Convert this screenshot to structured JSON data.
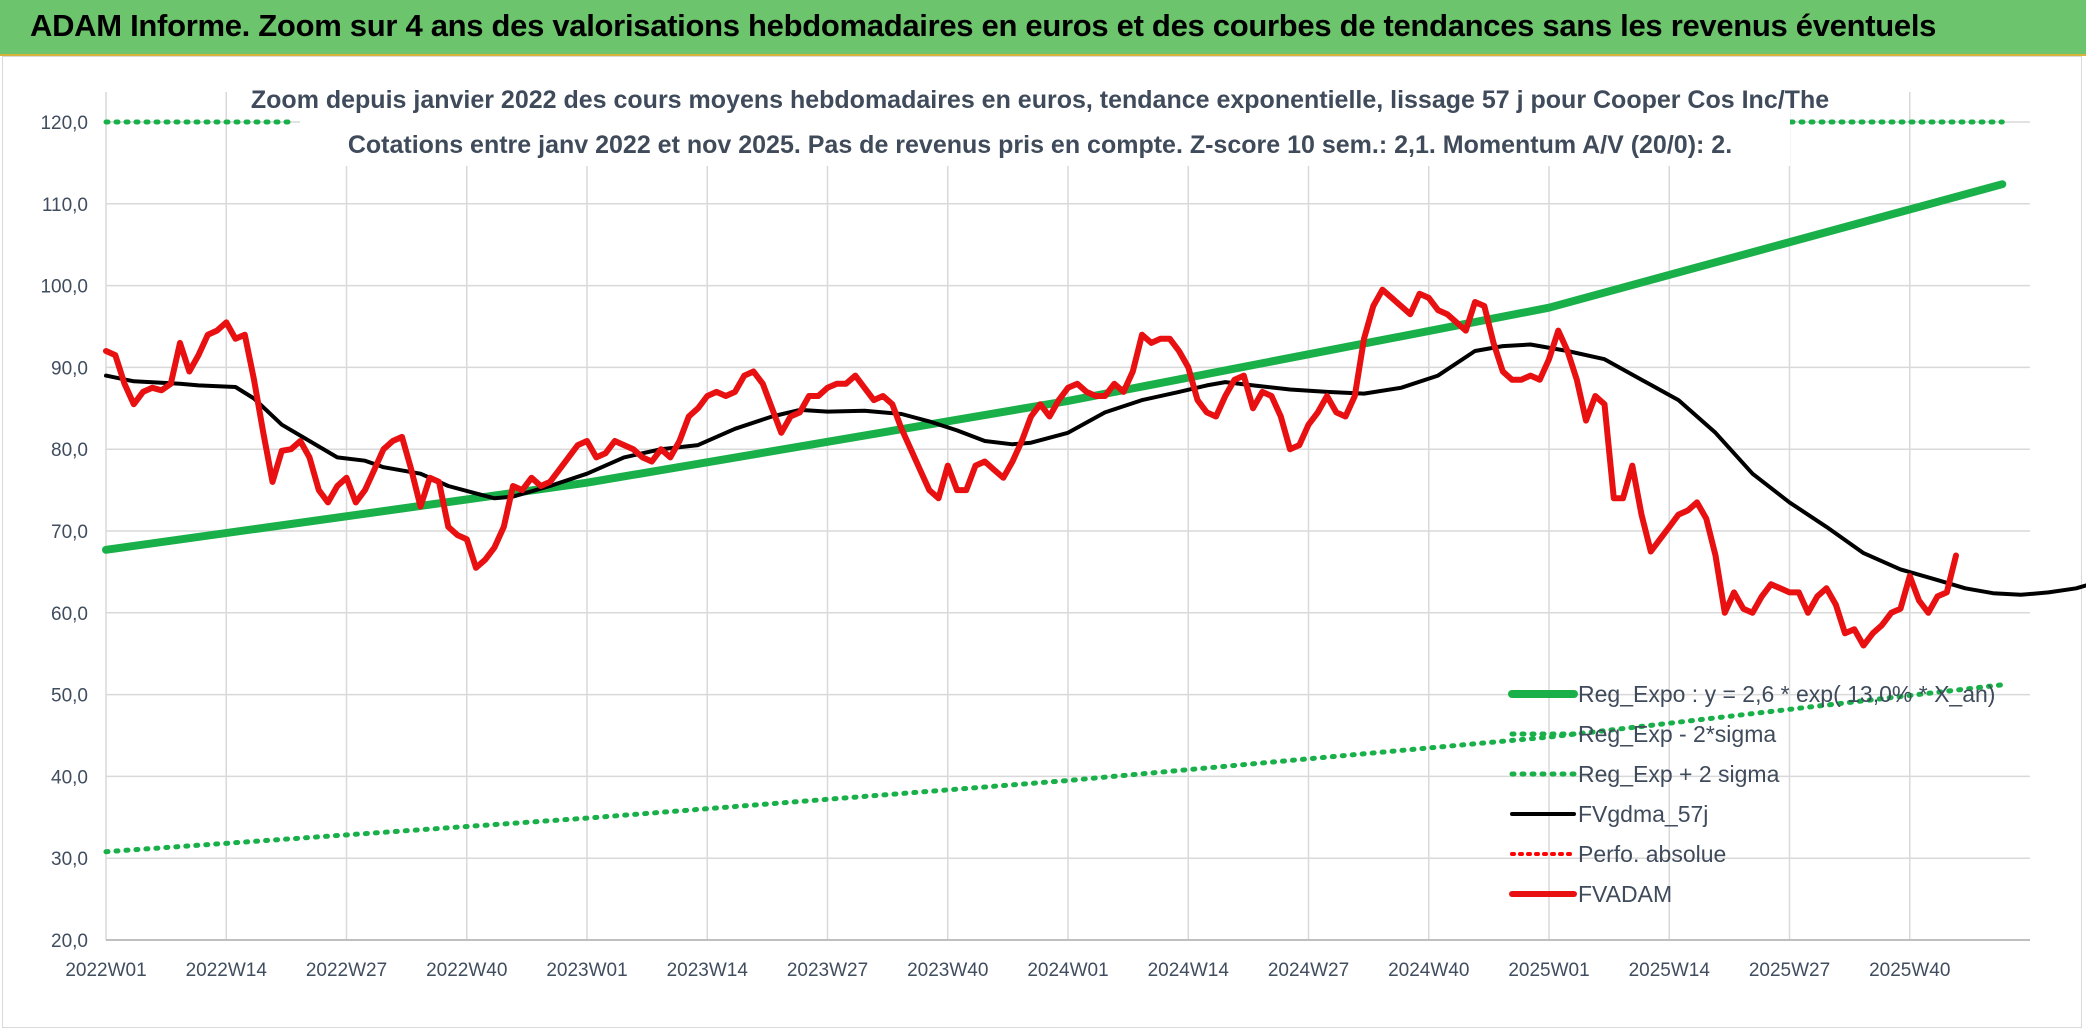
{
  "header": {
    "title": "ADAM Informe. Zoom sur 4 ans des valorisations hebdomadaires en euros et des courbes de tendances sans les revenus éventuels"
  },
  "colors": {
    "header_bg": "#6cc46c",
    "regression": "#19b04a",
    "sigma_bands": "#19b04a",
    "smoothed": "#000000",
    "perfo": "#ff0000",
    "price": "#e81010"
  },
  "chart_data": {
    "type": "line",
    "title": "Zoom depuis janvier 2022 des cours moyens hebdomadaires en euros, tendance exponentielle, lissage 57 j pour Cooper Cos Inc/The",
    "subtitle": "Cotations entre janv 2022 et nov 2025. Pas de revenus pris en compte. Z-score 10 sem.: 2,1. Momentum A/V (20/0): 2.",
    "xlabel": "",
    "ylabel": "",
    "ylim": [
      20,
      120
    ],
    "y_ticks": [
      "120,0",
      "110,0",
      "100,0",
      "90,0",
      "80,0",
      "70,0",
      "60,0",
      "50,0",
      "40,0",
      "30,0",
      "20,0"
    ],
    "x_ticks": [
      "2022W01",
      "2022W14",
      "2022W27",
      "2022W40",
      "2023W01",
      "2023W14",
      "2023W27",
      "2023W40",
      "2024W01",
      "2024W14",
      "2024W27",
      "2024W40",
      "2025W01",
      "2025W14",
      "2025W27",
      "2025W40"
    ],
    "grid": true,
    "legend_position": "bottom-right",
    "series": [
      {
        "name": "Reg_Expo : y = 2,6 * exp( 13,0% * X_an)",
        "style": "solid-thick",
        "points": [
          [
            0,
            67.7
          ],
          [
            52,
            75.9
          ],
          [
            104,
            85.9
          ],
          [
            156,
            97.3
          ],
          [
            205,
            112.4
          ]
        ]
      },
      {
        "name": "Reg_Exp - 2*sigma",
        "style": "dotted",
        "points": [
          [
            0,
            30.8
          ],
          [
            52,
            34.9
          ],
          [
            104,
            39.5
          ],
          [
            156,
            44.8
          ],
          [
            205,
            51.2
          ]
        ]
      },
      {
        "name": "Reg_Exp + 2 sigma",
        "style": "dotted",
        "points": [
          [
            0,
            120
          ],
          [
            20,
            120
          ],
          [
            null,
            null
          ],
          [
            180,
            120
          ],
          [
            205,
            120
          ]
        ]
      },
      {
        "name": "FVgdma_57j",
        "style": "solid",
        "points": [
          [
            0,
            89.0
          ],
          [
            3,
            88.3
          ],
          [
            8,
            88.0
          ],
          [
            10,
            87.8
          ],
          [
            14,
            87.6
          ],
          [
            16,
            86.2
          ],
          [
            19,
            83.0
          ],
          [
            22,
            81.0
          ],
          [
            25,
            79.0
          ],
          [
            28,
            78.6
          ],
          [
            30,
            77.8
          ],
          [
            34,
            77.0
          ],
          [
            37,
            75.5
          ],
          [
            40,
            74.6
          ],
          [
            42,
            74.0
          ],
          [
            44,
            74.2
          ],
          [
            48,
            75.5
          ],
          [
            52,
            77.0
          ],
          [
            56,
            79.0
          ],
          [
            60,
            80.0
          ],
          [
            64,
            80.5
          ],
          [
            68,
            82.5
          ],
          [
            72,
            84.0
          ],
          [
            75,
            84.8
          ],
          [
            78,
            84.6
          ],
          [
            82,
            84.7
          ],
          [
            86,
            84.3
          ],
          [
            89,
            83.4
          ],
          [
            92,
            82.3
          ],
          [
            95,
            81.0
          ],
          [
            98,
            80.6
          ],
          [
            100,
            80.8
          ],
          [
            104,
            82.0
          ],
          [
            108,
            84.5
          ],
          [
            112,
            86.0
          ],
          [
            116,
            87.0
          ],
          [
            119,
            87.8
          ],
          [
            121,
            88.2
          ],
          [
            124,
            87.8
          ],
          [
            128,
            87.3
          ],
          [
            132,
            87.0
          ],
          [
            136,
            86.8
          ],
          [
            140,
            87.5
          ],
          [
            144,
            89.0
          ],
          [
            148,
            92.0
          ],
          [
            151,
            92.6
          ],
          [
            154,
            92.8
          ],
          [
            158,
            92.0
          ],
          [
            162,
            91.0
          ],
          [
            166,
            88.5
          ],
          [
            170,
            86.0
          ],
          [
            174,
            82.0
          ],
          [
            178,
            77.0
          ],
          [
            182,
            73.5
          ],
          [
            186,
            70.5
          ],
          [
            190,
            67.3
          ],
          [
            194,
            65.3
          ],
          [
            198,
            64.0
          ],
          [
            201,
            63.0
          ],
          [
            204,
            62.4
          ],
          [
            207,
            62.2
          ],
          [
            210,
            62.5
          ],
          [
            213,
            63.0
          ],
          [
            216,
            64.0
          ],
          [
            219,
            64.5
          ]
        ]
      },
      {
        "name": "Perfo. absolue",
        "style": "dotted",
        "points": []
      },
      {
        "name": "FVADAM",
        "style": "solid-thick",
        "points": [
          [
            0,
            92.0
          ],
          [
            1,
            91.5
          ],
          [
            2,
            88.0
          ],
          [
            3,
            85.5
          ],
          [
            4,
            87.0
          ],
          [
            5,
            87.5
          ],
          [
            6,
            87.2
          ],
          [
            7,
            88.0
          ],
          [
            8,
            93.0
          ],
          [
            9,
            89.5
          ],
          [
            10,
            91.5
          ],
          [
            11,
            94.0
          ],
          [
            12,
            94.5
          ],
          [
            13,
            95.5
          ],
          [
            14,
            93.5
          ],
          [
            15,
            94.0
          ],
          [
            16,
            88.5
          ],
          [
            17,
            82.0
          ],
          [
            18,
            76.0
          ],
          [
            19,
            79.8
          ],
          [
            20,
            80.0
          ],
          [
            21,
            81.0
          ],
          [
            22,
            79.0
          ],
          [
            23,
            75.0
          ],
          [
            24,
            73.5
          ],
          [
            25,
            75.5
          ],
          [
            26,
            76.5
          ],
          [
            27,
            73.5
          ],
          [
            28,
            75.0
          ],
          [
            29,
            77.5
          ],
          [
            30,
            80.0
          ],
          [
            31,
            81.0
          ],
          [
            32,
            81.5
          ],
          [
            33,
            77.5
          ],
          [
            34,
            73.0
          ],
          [
            35,
            76.5
          ],
          [
            36,
            76.0
          ],
          [
            37,
            70.5
          ],
          [
            38,
            69.5
          ],
          [
            39,
            69.0
          ],
          [
            40,
            65.5
          ],
          [
            41,
            66.5
          ],
          [
            42,
            68.0
          ],
          [
            43,
            70.5
          ],
          [
            44,
            75.5
          ],
          [
            45,
            75.0
          ],
          [
            46,
            76.5
          ],
          [
            47,
            75.5
          ],
          [
            48,
            76.0
          ],
          [
            49,
            77.5
          ],
          [
            50,
            79.0
          ],
          [
            51,
            80.5
          ],
          [
            52,
            81.0
          ],
          [
            53,
            79.0
          ],
          [
            54,
            79.5
          ],
          [
            55,
            81.0
          ],
          [
            56,
            80.5
          ],
          [
            57,
            80.0
          ],
          [
            58,
            79.0
          ],
          [
            59,
            78.5
          ],
          [
            60,
            80.0
          ],
          [
            61,
            79.0
          ],
          [
            62,
            81.0
          ],
          [
            63,
            84.0
          ],
          [
            64,
            85.0
          ],
          [
            65,
            86.5
          ],
          [
            66,
            87.0
          ],
          [
            67,
            86.5
          ],
          [
            68,
            87.0
          ],
          [
            69,
            89.0
          ],
          [
            70,
            89.5
          ],
          [
            71,
            88.0
          ],
          [
            72,
            85.0
          ],
          [
            73,
            82.0
          ],
          [
            74,
            84.0
          ],
          [
            75,
            84.5
          ],
          [
            76,
            86.5
          ],
          [
            77,
            86.5
          ],
          [
            78,
            87.5
          ],
          [
            79,
            88.0
          ],
          [
            80,
            88.0
          ],
          [
            81,
            89.0
          ],
          [
            82,
            87.5
          ],
          [
            83,
            86.0
          ],
          [
            84,
            86.5
          ],
          [
            85,
            85.5
          ],
          [
            86,
            82.5
          ],
          [
            87,
            80.0
          ],
          [
            88,
            77.5
          ],
          [
            89,
            75.0
          ],
          [
            90,
            74.0
          ],
          [
            91,
            78.0
          ],
          [
            92,
            75.0
          ],
          [
            93,
            75.0
          ],
          [
            94,
            78.0
          ],
          [
            95,
            78.5
          ],
          [
            96,
            77.5
          ],
          [
            97,
            76.5
          ],
          [
            98,
            78.5
          ],
          [
            99,
            81.0
          ],
          [
            100,
            84.0
          ],
          [
            101,
            85.5
          ],
          [
            102,
            84.0
          ],
          [
            103,
            86.0
          ],
          [
            104,
            87.5
          ],
          [
            105,
            88.0
          ],
          [
            106,
            87.0
          ],
          [
            107,
            86.5
          ],
          [
            108,
            86.5
          ],
          [
            109,
            88.0
          ],
          [
            110,
            87.0
          ],
          [
            111,
            89.5
          ],
          [
            112,
            94.0
          ],
          [
            113,
            93.0
          ],
          [
            114,
            93.5
          ],
          [
            115,
            93.5
          ],
          [
            116,
            92.0
          ],
          [
            117,
            90.0
          ],
          [
            118,
            86.0
          ],
          [
            119,
            84.5
          ],
          [
            120,
            84.0
          ],
          [
            121,
            86.5
          ],
          [
            122,
            88.5
          ],
          [
            123,
            89.0
          ],
          [
            124,
            85.0
          ],
          [
            125,
            87.0
          ],
          [
            126,
            86.5
          ],
          [
            127,
            84.0
          ],
          [
            128,
            80.0
          ],
          [
            129,
            80.5
          ],
          [
            130,
            83.0
          ],
          [
            131,
            84.5
          ],
          [
            132,
            86.5
          ],
          [
            133,
            84.5
          ],
          [
            134,
            84.0
          ],
          [
            135,
            86.5
          ],
          [
            136,
            93.5
          ],
          [
            137,
            97.5
          ],
          [
            138,
            99.5
          ],
          [
            139,
            98.5
          ],
          [
            140,
            97.5
          ],
          [
            141,
            96.5
          ],
          [
            142,
            99.0
          ],
          [
            143,
            98.5
          ],
          [
            144,
            97.0
          ],
          [
            145,
            96.5
          ],
          [
            146,
            95.5
          ],
          [
            147,
            94.5
          ],
          [
            148,
            98.0
          ],
          [
            149,
            97.5
          ],
          [
            150,
            93.0
          ],
          [
            151,
            89.5
          ],
          [
            152,
            88.5
          ],
          [
            153,
            88.5
          ],
          [
            154,
            89.0
          ],
          [
            155,
            88.5
          ],
          [
            156,
            91.0
          ],
          [
            157,
            94.5
          ],
          [
            158,
            92.0
          ],
          [
            159,
            88.5
          ],
          [
            160,
            83.5
          ],
          [
            161,
            86.5
          ],
          [
            162,
            85.5
          ],
          [
            163,
            74.0
          ],
          [
            164,
            74.0
          ],
          [
            165,
            78.0
          ],
          [
            166,
            72.0
          ],
          [
            167,
            67.5
          ],
          [
            168,
            69.0
          ],
          [
            169,
            70.5
          ],
          [
            170,
            72.0
          ],
          [
            171,
            72.5
          ],
          [
            172,
            73.5
          ],
          [
            173,
            71.5
          ],
          [
            174,
            67.0
          ],
          [
            175,
            60.0
          ],
          [
            176,
            62.5
          ],
          [
            177,
            60.5
          ],
          [
            178,
            60.0
          ],
          [
            179,
            62.0
          ],
          [
            180,
            63.5
          ],
          [
            181,
            63.0
          ],
          [
            182,
            62.5
          ],
          [
            183,
            62.5
          ],
          [
            184,
            60.0
          ],
          [
            185,
            62.0
          ],
          [
            186,
            63.0
          ],
          [
            187,
            61.0
          ],
          [
            188,
            57.5
          ],
          [
            189,
            58.0
          ],
          [
            190,
            56.0
          ],
          [
            191,
            57.5
          ],
          [
            192,
            58.5
          ],
          [
            193,
            60.0
          ],
          [
            194,
            60.5
          ],
          [
            195,
            64.5
          ],
          [
            196,
            61.5
          ],
          [
            197,
            60.0
          ],
          [
            198,
            62.0
          ],
          [
            199,
            62.5
          ],
          [
            200,
            67.0
          ]
        ]
      }
    ]
  }
}
